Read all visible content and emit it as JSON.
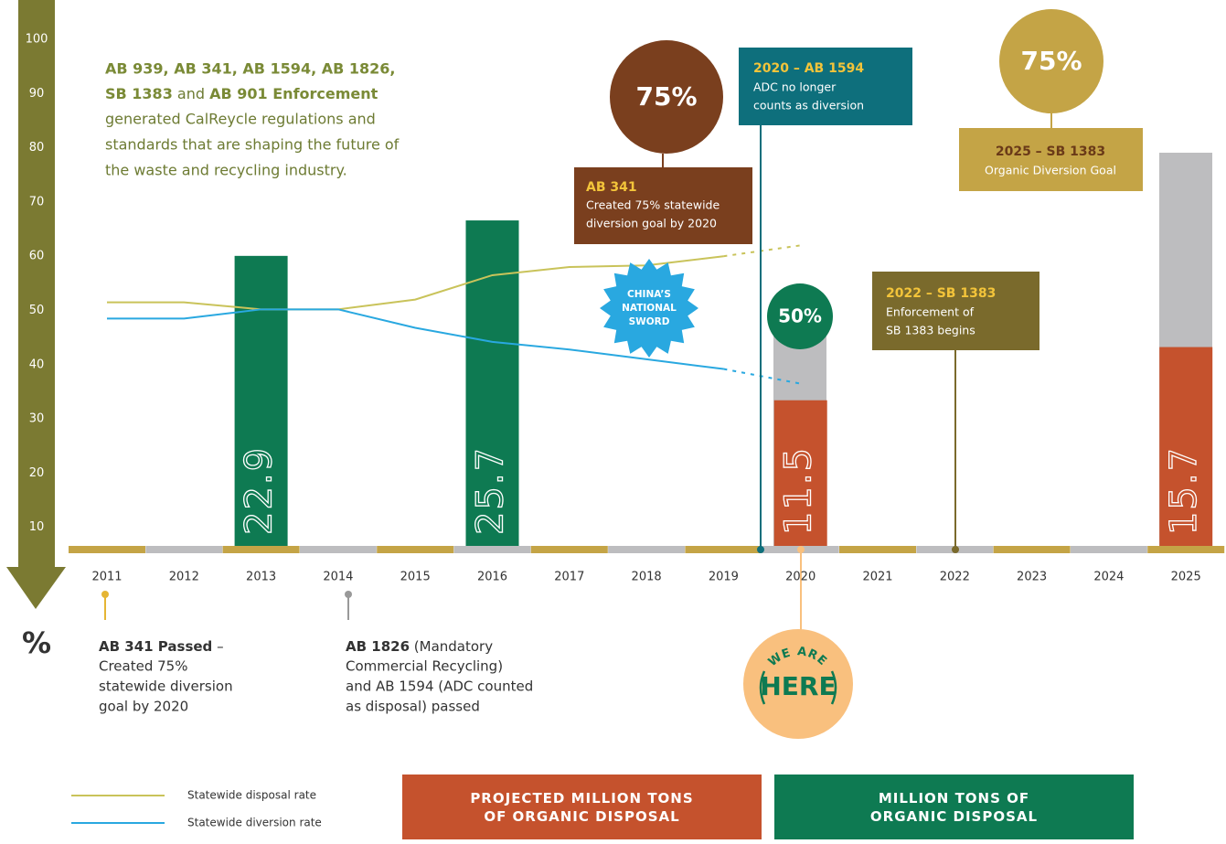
{
  "chart_data": {
    "type": "bar",
    "intro": {
      "line1": "AB 939, AB 341, AB 1594, AB 1826,",
      "line2_bold_a": "SB 1383",
      "line2_mid": "and",
      "line2_bold_b": "AB 901 Enforcement",
      "lines": [
        "generated CalReycle regulations and",
        "standards that are shaping the future of",
        "the waste and recycling industry."
      ]
    },
    "y_label": "%",
    "categories": [
      "2011",
      "2012",
      "2013",
      "2014",
      "2015",
      "2016",
      "2017",
      "2018",
      "2019",
      "2020",
      "2021",
      "2022",
      "2023",
      "2024",
      "2025"
    ],
    "ylim": [
      0,
      100
    ],
    "yticks": [
      10,
      20,
      30,
      40,
      50,
      60,
      70,
      80,
      90,
      100
    ],
    "y2lim": [
      0,
      40
    ],
    "series": [
      {
        "name": "Statewide disposal rate",
        "type": "line",
        "color": "#c9c35a",
        "values": [
          51.5,
          51.5,
          50.2,
          50.2,
          52,
          56.5,
          58,
          58.3,
          60,
          62,
          null,
          null,
          null,
          null,
          null
        ]
      },
      {
        "name": "Statewide diversion rate",
        "type": "line",
        "color": "#29a8e0",
        "values": [
          48.5,
          48.5,
          50.2,
          50.2,
          46.8,
          44.2,
          42.8,
          41,
          39.2,
          36.5,
          null,
          null,
          null,
          null,
          null
        ]
      },
      {
        "name": "PROJECTED MILLION TONS OF ORGANIC DISPOSAL",
        "type": "bar",
        "axis": "y2",
        "color": "#c5522d",
        "values": [
          null,
          null,
          null,
          null,
          null,
          null,
          null,
          null,
          null,
          11.5,
          null,
          null,
          null,
          null,
          15.7
        ]
      },
      {
        "name": "MILLION TONS OF ORGANIC DISPOSAL",
        "type": "bar",
        "axis": "y2",
        "color": "#0e7a52",
        "values": [
          null,
          null,
          22.9,
          null,
          null,
          25.7,
          null,
          null,
          null,
          null,
          null,
          null,
          null,
          null,
          null
        ]
      }
    ],
    "annotations": [
      {
        "badge": "75%",
        "title": "AB 341",
        "lines": [
          "Created 75% statewide",
          "diversion goal by 2020"
        ]
      },
      {
        "title": "2020 – AB 1594",
        "lines": [
          "ADC no longer",
          "counts as diversion"
        ]
      },
      {
        "badge": "75%",
        "title": "2025 – SB 1383",
        "lines": [
          "Organic Diversion Goal"
        ]
      },
      {
        "lines": [
          "CHINA’S",
          "NATIONAL",
          "SWORD"
        ]
      },
      {
        "badge": "50%"
      },
      {
        "title": "2022 – SB 1383",
        "lines": [
          "Enforcement of",
          "SB 1383 begins"
        ]
      },
      {
        "lines": [
          "WE ARE",
          "HERE"
        ]
      },
      {
        "title": "AB 341 Passed",
        "suffix": "–",
        "lines": [
          "Created 75%",
          "statewide diversion",
          "goal by 2020"
        ]
      },
      {
        "title": "AB 1826",
        "suffix": "(Mandatory",
        "lines": [
          "Commercial Recycling)",
          "and AB 1594 (ADC counted",
          "as disposal) passed"
        ]
      }
    ]
  }
}
